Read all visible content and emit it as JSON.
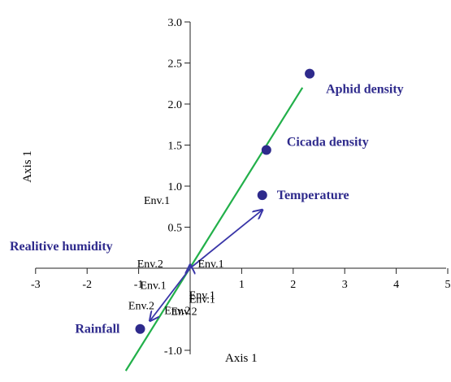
{
  "chart_data": {
    "type": "scatter",
    "xlabel": "Axis 1",
    "ylabel": "Axis 1",
    "xlim": [
      -3,
      5
    ],
    "ylim": [
      -1,
      3
    ],
    "x_ticks": [
      "-3",
      "-2",
      "-1",
      "1",
      "2",
      "3",
      "4",
      "5"
    ],
    "y_ticks": [
      "-1.0",
      "0.5",
      "1.0",
      "1.5",
      "2.0",
      "2.5",
      "3.0"
    ],
    "points": [
      {
        "label": "Aphid density",
        "x": 2.32,
        "y": 2.37
      },
      {
        "label": "Cicada density",
        "x": 1.48,
        "y": 1.44
      },
      {
        "label": "Temperature",
        "x": 1.4,
        "y": 0.89
      },
      {
        "label": "Rainfall",
        "x": -0.97,
        "y": -0.74
      }
    ],
    "vectors": [
      {
        "label": "Realitive humidity",
        "x": 0,
        "y": 0.04
      },
      {
        "label": "Temperature",
        "x": 1.4,
        "y": 0.71
      },
      {
        "label": "Rainfall",
        "x": -0.78,
        "y": -0.64
      }
    ],
    "env_labels": [
      {
        "text": "Env.1",
        "x": -0.9,
        "y": 0.78
      },
      {
        "text": "Env.2",
        "x": -1.03,
        "y": 0.01
      },
      {
        "text": "Env.1",
        "x": 0.15,
        "y": 0.01
      },
      {
        "text": "Env.1",
        "x": -0.97,
        "y": -0.25
      },
      {
        "text": "Env.1",
        "x": -0.02,
        "y": -0.37
      },
      {
        "text": "Env.1",
        "x": -0.02,
        "y": -0.42
      },
      {
        "text": "Env.2",
        "x": -1.2,
        "y": -0.5
      },
      {
        "text": "Env.2",
        "x": -0.5,
        "y": -0.56
      },
      {
        "text": "Env.2",
        "x": -0.37,
        "y": -0.57
      }
    ],
    "fit_line": {
      "x1": -1.25,
      "y1": -1.25,
      "x2": 2.18,
      "y2": 2.2
    },
    "colors": {
      "points": "#2e2a8c",
      "arrows": "#3a36a8",
      "fit_line": "#22b04a",
      "text": "#2e2a8c"
    }
  }
}
